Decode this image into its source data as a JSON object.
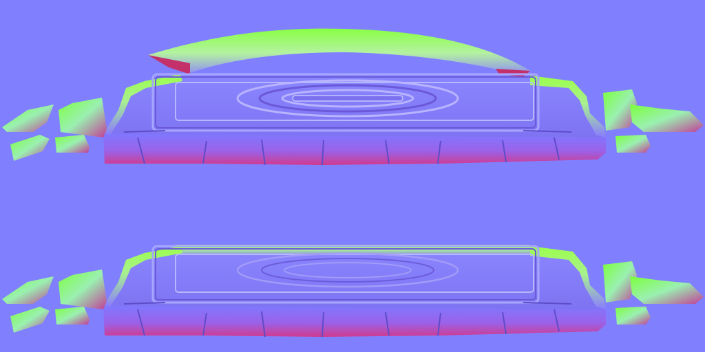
{
  "texture": {
    "kind": "normal-map",
    "background_color": "#8080ff",
    "rim_color": "#80ff40",
    "edge_color": "#ff4080",
    "slab_color": "#7a6ef0",
    "variants": [
      {
        "id": "top",
        "has_arch": true
      },
      {
        "id": "bottom",
        "has_arch": false
      }
    ]
  }
}
